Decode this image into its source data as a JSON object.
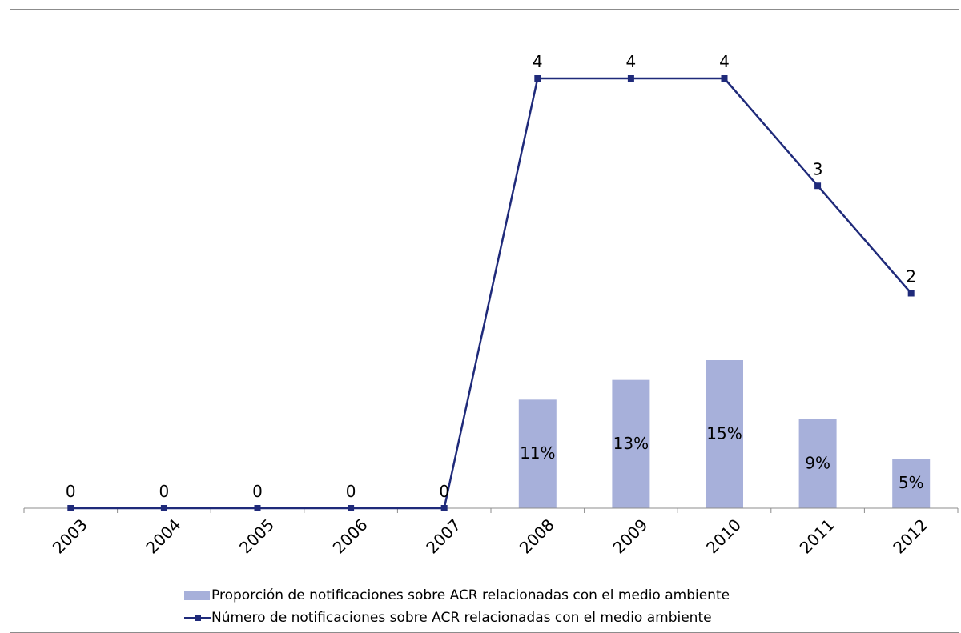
{
  "chart_data": {
    "type": "bar+line",
    "categories": [
      "2003",
      "2004",
      "2005",
      "2006",
      "2007",
      "2008",
      "2009",
      "2010",
      "2011",
      "2012"
    ],
    "series": [
      {
        "name": "Proporción de notificaciones sobre ACR relacionadas con el medio ambiente",
        "type": "bar",
        "values": [
          null,
          null,
          null,
          null,
          null,
          11,
          13,
          15,
          9,
          5
        ],
        "value_labels": [
          "",
          "",
          "",
          "",
          "",
          "11%",
          "13%",
          "15%",
          "9%",
          "5%"
        ],
        "unit": "%",
        "color": "#a7b0da"
      },
      {
        "name": "Número de notificaciones sobre ACR relacionadas con el medio ambiente",
        "type": "line",
        "values": [
          0,
          0,
          0,
          0,
          0,
          4,
          4,
          4,
          3,
          2
        ],
        "value_labels": [
          "0",
          "0",
          "0",
          "0",
          "0",
          "4",
          "4",
          "4",
          "3",
          "2"
        ],
        "color": "#1f2a7a"
      }
    ],
    "line_axis_range": [
      0,
      4
    ],
    "bar_axis_range_percent": [
      0,
      15
    ],
    "grid": false,
    "legend_position": "bottom",
    "xlabel": "",
    "ylabel": "",
    "title": ""
  }
}
